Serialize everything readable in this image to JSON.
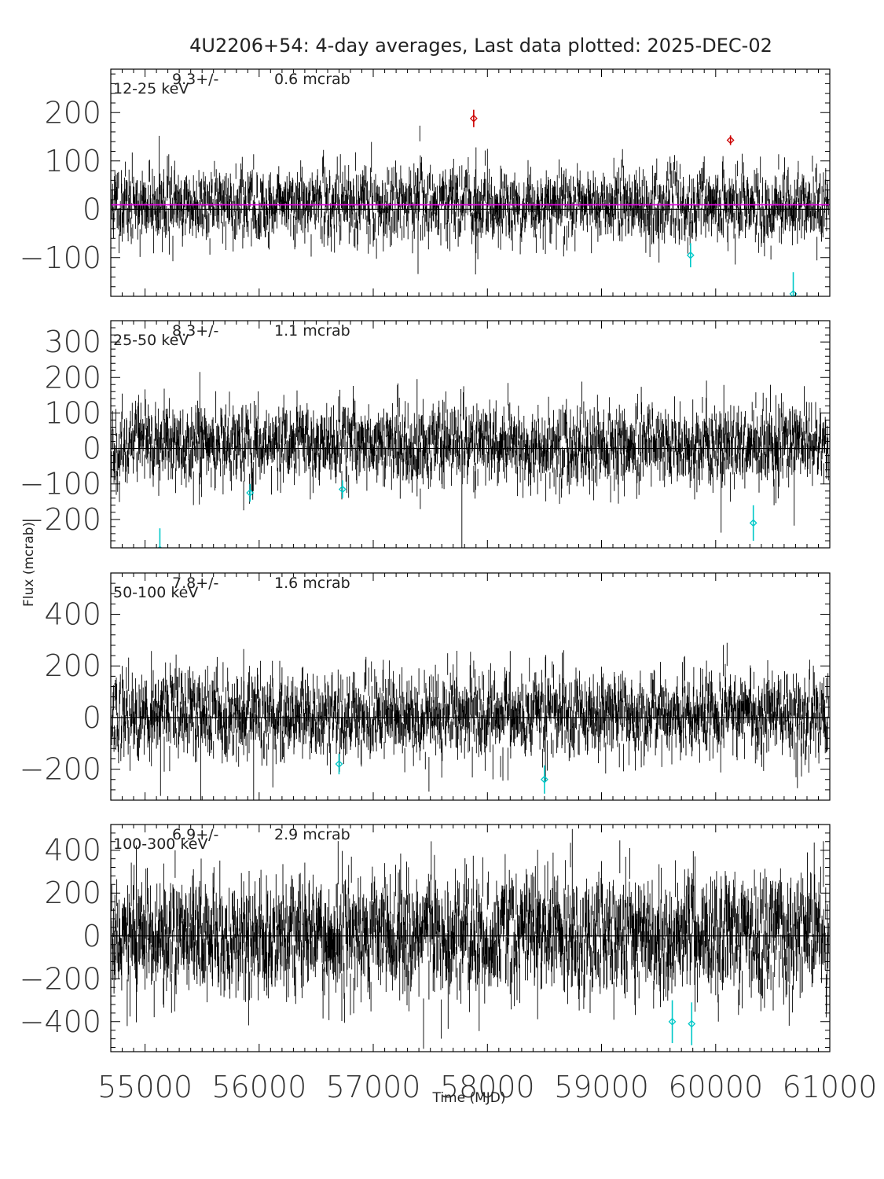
{
  "chart_data": {
    "type": "scatter",
    "title": "4U2206+54:  4-day averages,  Last data plotted: 2025-DEC-02",
    "xlabel": "Time (MJD)",
    "ylabel": "Flux (mcrab)",
    "xlim": [
      54700,
      61000
    ],
    "xticks": [
      55000,
      56000,
      57000,
      58000,
      59000,
      60000,
      61000
    ],
    "colors": {
      "data": "#000000",
      "high_outlier": "#cc0000",
      "low_outlier": "#00c8c8",
      "mean_line": "#e000e0",
      "zero_line": "#000000"
    },
    "panels": [
      {
        "band": "12-25 keV",
        "mean_text": "9.3+/-",
        "err_text": "0.6 mcrab",
        "mean": 9.3,
        "ylim": [
          -180,
          290
        ],
        "yticks": [
          -100,
          0,
          100,
          200
        ],
        "tick_labels": [
          "−100",
          "0",
          "100",
          "200"
        ],
        "noise_sigma": 32,
        "seed": 11,
        "show_mean_line": true,
        "markers": [
          {
            "x": 57880,
            "y": 188,
            "err": 18,
            "color": "high_outlier"
          },
          {
            "x": 60130,
            "y": 143,
            "err": 10,
            "color": "high_outlier"
          },
          {
            "x": 59780,
            "y": -95,
            "err": 25,
            "color": "low_outlier"
          },
          {
            "x": 60680,
            "y": -175,
            "err": 45,
            "color": "low_outlier"
          }
        ]
      },
      {
        "band": "25-50 keV",
        "mean_text": "8.3+/-",
        "err_text": "1.1 mcrab",
        "mean": 8.3,
        "ylim": [
          -280,
          360
        ],
        "yticks": [
          -200,
          -100,
          0,
          100,
          200,
          300
        ],
        "tick_labels": [
          "−200",
          "−100",
          "0",
          "100",
          "200",
          "300"
        ],
        "noise_sigma": 48,
        "seed": 23,
        "show_mean_line": false,
        "markers": [
          {
            "x": 55130,
            "y": -285,
            "err": 60,
            "color": "low_outlier"
          },
          {
            "x": 55920,
            "y": -125,
            "err": 25,
            "color": "low_outlier"
          },
          {
            "x": 56730,
            "y": -115,
            "err": 25,
            "color": "low_outlier"
          },
          {
            "x": 60330,
            "y": -210,
            "err": 50,
            "color": "low_outlier"
          }
        ]
      },
      {
        "band": "50-100 keV",
        "mean_text": "7.8+/-",
        "err_text": "1.6 mcrab",
        "mean": 7.8,
        "ylim": [
          -320,
          560
        ],
        "yticks": [
          -200,
          0,
          200,
          400
        ],
        "tick_labels": [
          "−200",
          "0",
          "200",
          "400"
        ],
        "noise_sigma": 70,
        "seed": 37,
        "show_mean_line": false,
        "markers": [
          {
            "x": 56700,
            "y": -180,
            "err": 40,
            "color": "low_outlier"
          },
          {
            "x": 58500,
            "y": -240,
            "err": 55,
            "color": "low_outlier"
          }
        ]
      },
      {
        "band": "100-300 keV",
        "mean_text": "6.9+/-",
        "err_text": "2.9 mcrab",
        "mean": 6.9,
        "ylim": [
          -540,
          520
        ],
        "yticks": [
          -400,
          -200,
          0,
          200,
          400
        ],
        "tick_labels": [
          "−400",
          "−200",
          "0",
          "200",
          "400"
        ],
        "noise_sigma": 120,
        "seed": 53,
        "show_mean_line": false,
        "markers": [
          {
            "x": 59620,
            "y": -400,
            "err": 100,
            "color": "low_outlier"
          },
          {
            "x": 59790,
            "y": -410,
            "err": 100,
            "color": "low_outlier"
          }
        ]
      }
    ]
  }
}
